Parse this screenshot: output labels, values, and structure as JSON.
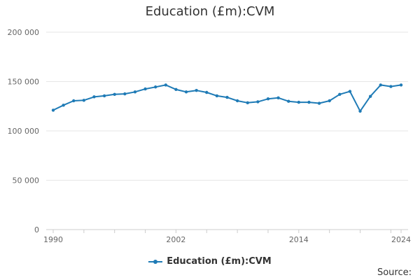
{
  "chart_data": {
    "type": "line",
    "title": "Education (£m):CVM",
    "xlabel": "",
    "ylabel": "",
    "ylim": [
      0,
      200000
    ],
    "yticks": [
      0,
      50000,
      100000,
      150000,
      200000
    ],
    "ytick_labels": [
      "0",
      "50 000",
      "100 000",
      "150 000",
      "200 000"
    ],
    "xlim": [
      1990,
      2024
    ],
    "xticks": [
      1990,
      2002,
      2014,
      2024
    ],
    "xtick_labels": [
      "1990",
      "2002",
      "2014",
      "2024"
    ],
    "grid": "horizontal",
    "legend_position": "bottom",
    "color": "#1f7bb6",
    "series": [
      {
        "name": "Education (£m):CVM",
        "x": [
          1990,
          1991,
          1992,
          1993,
          1994,
          1995,
          1996,
          1997,
          1998,
          1999,
          2000,
          2001,
          2002,
          2003,
          2004,
          2005,
          2006,
          2007,
          2008,
          2009,
          2010,
          2011,
          2012,
          2013,
          2014,
          2015,
          2016,
          2017,
          2018,
          2019,
          2020,
          2021,
          2022,
          2023,
          2024
        ],
        "values": [
          121000,
          126000,
          130500,
          131000,
          134500,
          135500,
          137000,
          137500,
          139500,
          142500,
          144500,
          146500,
          142000,
          139500,
          141000,
          139000,
          135500,
          134000,
          130500,
          128500,
          129500,
          132500,
          133500,
          130000,
          129000,
          129000,
          128000,
          130500,
          137000,
          140000,
          120000,
          135000,
          146500,
          145000,
          146500
        ]
      }
    ]
  },
  "footer": {
    "source_label": "Source:"
  }
}
